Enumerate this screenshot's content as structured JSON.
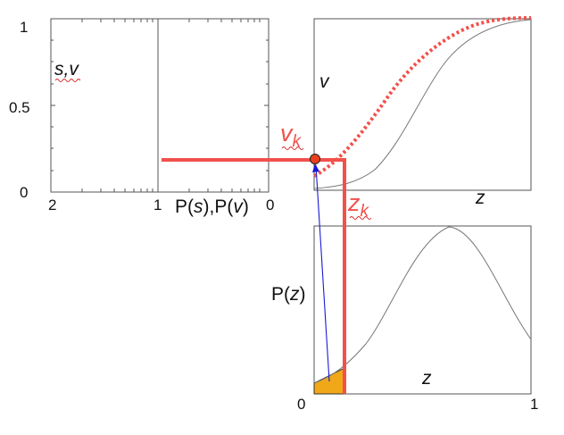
{
  "colors": {
    "accent": "#f2504b",
    "arrow": "#1a1ad6",
    "fill_area": "#f0a818",
    "curve": "#555555",
    "marker": "#e8401c"
  },
  "left_panel": {
    "y_tick_top": "1",
    "y_tick_mid": "0.5",
    "y_tick_bottom": "0",
    "y_label": "s,v",
    "x_tick_left": "2",
    "x_tick_mid": "1",
    "x_tick_right": "0",
    "x_label_pre": "P(",
    "x_label_s": "s",
    "x_label_mid": "),P(",
    "x_label_v": "v",
    "x_label_post": ")"
  },
  "top_right_panel": {
    "y_label": "v",
    "x_label": "z"
  },
  "bottom_right_panel": {
    "y_label_pre": "P(",
    "y_label_var": "z",
    "y_label_post": ")",
    "x_label": "z",
    "x_tick_left": "0",
    "x_tick_right": "1"
  },
  "annotations": {
    "v_k_main": "v",
    "v_k_sub": "k",
    "z_k_main": "z",
    "z_k_sub": "k"
  }
}
